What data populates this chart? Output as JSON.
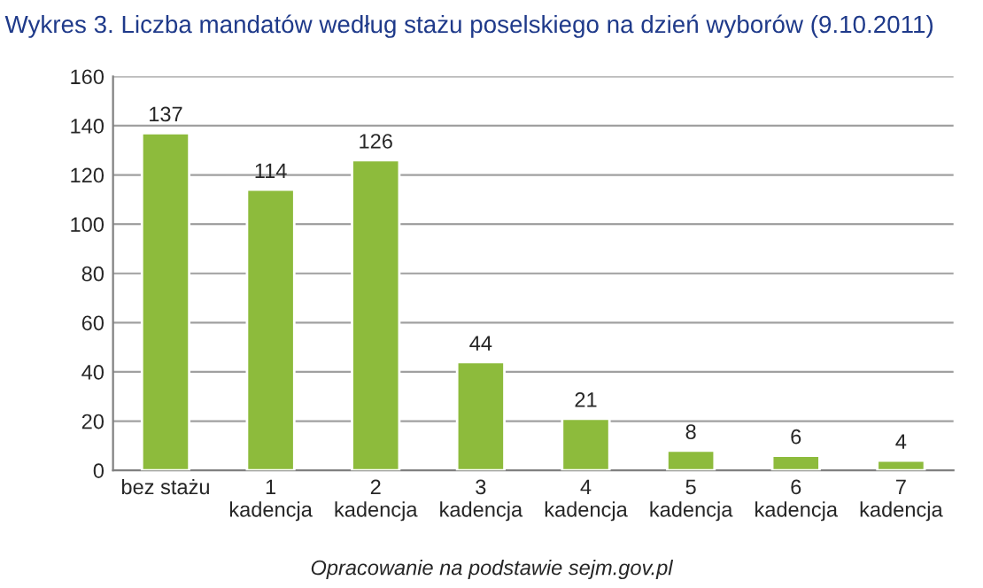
{
  "chart_data": {
    "type": "bar",
    "title": "Wykres 3. Liczba mandatów według stażu poselskiego na dzień wyborów (9.10.2011)",
    "categories": [
      "bez stażu",
      "1\nkadencja",
      "2\nkadencja",
      "3\nkadencja",
      "4\nkadencja",
      "5\nkadencja",
      "6\nkadencja",
      "7\nkadencja"
    ],
    "values": [
      137,
      114,
      126,
      44,
      21,
      8,
      6,
      4
    ],
    "color": "#8dbb3c",
    "ylim": [
      0,
      160
    ],
    "yticks": [
      0,
      20,
      40,
      60,
      80,
      100,
      120,
      140,
      160
    ],
    "grid": "y",
    "data_labels": true,
    "annotations": [
      "Opracowanie na podstawie sejm.gov.pl"
    ]
  }
}
